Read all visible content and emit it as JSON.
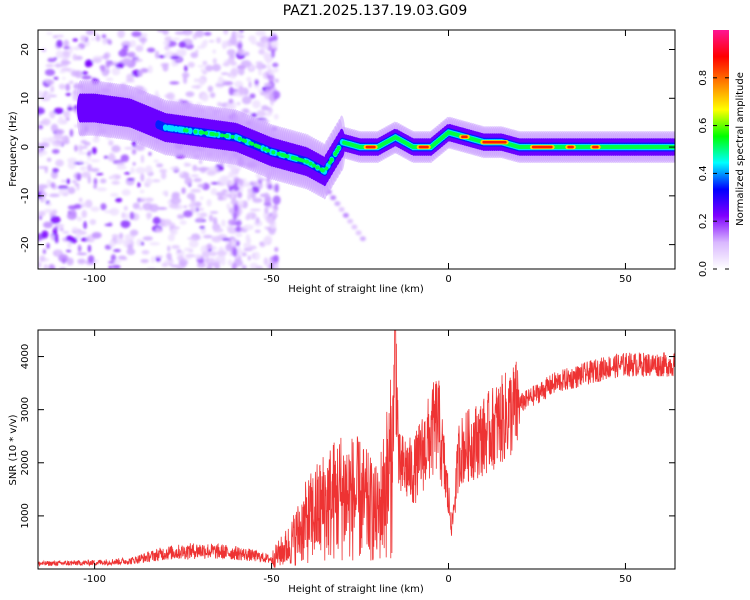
{
  "title": "PAZ1.2025.137.19.03.G09",
  "chart_data": [
    {
      "type": "heatmap",
      "xlabel": "Height of straight line (km)",
      "ylabel": "Frequency (Hz)",
      "xlim": [
        -116,
        64
      ],
      "ylim": [
        -25,
        24
      ],
      "x_ticks": [
        -100,
        -50,
        0,
        50
      ],
      "y_ticks": [
        -20,
        -10,
        0,
        10,
        20
      ],
      "colorbar": {
        "label": "Normalized spectral amplitude",
        "range": [
          0,
          1
        ],
        "ticks": [
          0,
          0.2,
          0.4,
          0.6,
          0.8
        ],
        "tick_labels": [
          "0.0",
          "0.2",
          "0.4",
          "0.6",
          "0.8"
        ],
        "colors": [
          "#ffffff",
          "#d9b8ff",
          "#8000ff",
          "#0000ff",
          "#00ffff",
          "#00ff00",
          "#ffff00",
          "#ff8000",
          "#ff0000",
          "#ff1493"
        ]
      },
      "ridge": {
        "x": [
          -100,
          -90,
          -80,
          -70,
          -60,
          -50,
          -45,
          -40,
          -35,
          -30,
          -25,
          -20,
          -15,
          -10,
          -5,
          0,
          5,
          10,
          15,
          20,
          30,
          40,
          50,
          64
        ],
        "y": [
          8,
          7,
          4,
          3,
          2,
          -1,
          -2,
          -3,
          -5,
          1,
          0,
          0,
          2,
          0,
          0,
          3,
          2,
          1,
          1,
          0,
          0,
          0,
          0,
          0
        ]
      }
    },
    {
      "type": "line",
      "xlabel": "Height of straight line (km)",
      "ylabel": "SNR (10 * v/v)",
      "xlim": [
        -116,
        64
      ],
      "ylim": [
        0,
        4500
      ],
      "x_ticks": [
        -100,
        -50,
        0,
        50
      ],
      "y_ticks": [
        1000,
        2000,
        3000,
        4000
      ],
      "color": "#ee3333",
      "series": [
        {
          "x": [
            -116,
            -100,
            -90,
            -80,
            -70,
            -60,
            -55,
            -50,
            -45,
            -40,
            -35,
            -30,
            -25,
            -20,
            -16,
            -15,
            -14,
            -12,
            -10,
            -8,
            -5,
            -3,
            0,
            1,
            3,
            5,
            10,
            15,
            20,
            25,
            30,
            35,
            40,
            45,
            50,
            55,
            60,
            64
          ],
          "y": [
            100,
            120,
            150,
            300,
            350,
            300,
            250,
            180,
            450,
            900,
            1200,
            1400,
            1300,
            1000,
            2000,
            4300,
            1900,
            1900,
            1800,
            2100,
            2500,
            2800,
            1300,
            800,
            2200,
            2300,
            2500,
            2800,
            3100,
            3300,
            3500,
            3600,
            3700,
            3800,
            3850,
            3850,
            3850,
            3850
          ]
        }
      ]
    }
  ]
}
